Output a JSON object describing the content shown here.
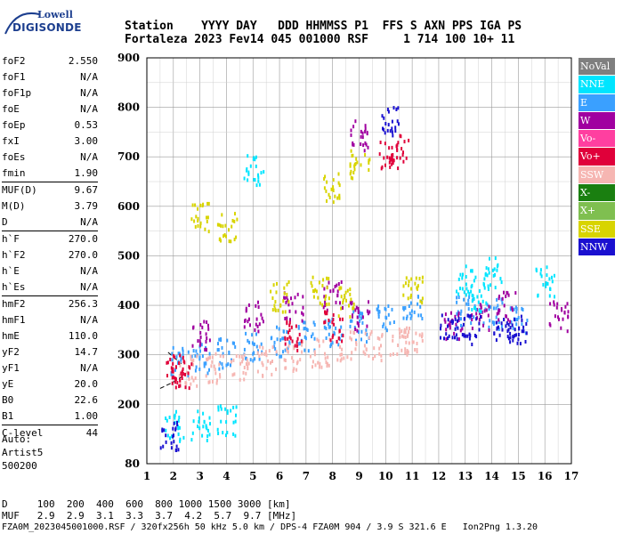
{
  "logo": {
    "top": "Lowell",
    "bottom": "DIGISONDE"
  },
  "header": {
    "line1": "Station    YYYY DAY   DDD HHMMSS P1  FFS S AXN PPS IGA PS",
    "line2": "Fortaleza 2023 Fev14 045 001000 RSF     1 714 100 10+ 11"
  },
  "params": [
    {
      "key": "foF2",
      "value": "2.550"
    },
    {
      "key": "foF1",
      "value": "N/A"
    },
    {
      "key": "foF1p",
      "value": "N/A"
    },
    {
      "key": "foE",
      "value": "N/A"
    },
    {
      "key": "foEp",
      "value": "0.53"
    },
    {
      "key": "fxI",
      "value": "3.00"
    },
    {
      "key": "foEs",
      "value": "N/A"
    },
    {
      "key": "fmin",
      "value": "1.90"
    },
    {
      "key": "MUF(D)",
      "value": "9.67"
    },
    {
      "key": "M(D)",
      "value": "3.79"
    },
    {
      "key": "D",
      "value": "N/A"
    },
    {
      "key": "h`F",
      "value": "270.0"
    },
    {
      "key": "h`F2",
      "value": "270.0"
    },
    {
      "key": "h`E",
      "value": "N/A"
    },
    {
      "key": "h`Es",
      "value": "N/A"
    },
    {
      "key": "hmF2",
      "value": "256.3"
    },
    {
      "key": "hmF1",
      "value": "N/A"
    },
    {
      "key": "hmE",
      "value": "110.0"
    },
    {
      "key": "yF2",
      "value": "14.7"
    },
    {
      "key": "yF1",
      "value": "N/A"
    },
    {
      "key": "yE",
      "value": "20.0"
    },
    {
      "key": "B0",
      "value": "22.6"
    },
    {
      "key": "B1",
      "value": "1.00"
    },
    {
      "key": "C-level",
      "value": "44"
    }
  ],
  "auto": {
    "line1": "Auto:",
    "line2": "Artist5",
    "line3": "500200"
  },
  "legend": [
    {
      "label": "NoVal",
      "color": "#7f7f7f"
    },
    {
      "label": "NNE",
      "color": "#00e5ff"
    },
    {
      "label": "E",
      "color": "#3aa0ff"
    },
    {
      "label": "W",
      "color": "#a000a0"
    },
    {
      "label": "Vo-",
      "color": "#ff3fa0"
    },
    {
      "label": "Vo+",
      "color": "#e0003a"
    },
    {
      "label": "SSW",
      "color": "#f6b6b2"
    },
    {
      "label": "X-",
      "color": "#1a7f10"
    },
    {
      "label": "X+",
      "color": "#7fbf50"
    },
    {
      "label": "SSE",
      "color": "#d8d400"
    },
    {
      "label": "NNW",
      "color": "#1a10d0"
    }
  ],
  "bottom": {
    "line1": "D     100  200  400  600  800 1000 1500 3000 [km]",
    "line2": "MUF   2.9  2.9  3.1  3.3  3.7  4.2  5.7  9.7 [MHz]"
  },
  "footer": "FZA0M_2023045001000.RSF / 320fx256h 50 kHz 5.0 km / DPS-4 FZA0M 904 / 3.9 S 321.6 E   Ion2Png 1.3.20",
  "chart_data": {
    "type": "scatter",
    "x_ticks": [
      "1",
      "2",
      "3",
      "4",
      "5",
      "6",
      "7",
      "8",
      "9",
      "10",
      "11",
      "12",
      "13",
      "14",
      "15",
      "16",
      "17"
    ],
    "y_ticks": [
      "80",
      "200",
      "300",
      "400",
      "500",
      "600",
      "700",
      "800",
      "900"
    ],
    "xlim": [
      1,
      17
    ],
    "ylim": [
      80,
      900
    ],
    "series": [
      {
        "name": "E",
        "color": "#3aa0ff",
        "points": [
          [
            2.2,
            290
          ],
          [
            3,
            295
          ],
          [
            4,
            305
          ],
          [
            5,
            320
          ],
          [
            6,
            330
          ],
          [
            7,
            340
          ],
          [
            8,
            350
          ],
          [
            9,
            360
          ],
          [
            10,
            380
          ],
          [
            11,
            395
          ],
          [
            13,
            390
          ],
          [
            14,
            385
          ],
          [
            15,
            375
          ]
        ]
      },
      {
        "name": "SSW",
        "color": "#f6b6b2",
        "points": [
          [
            2.5,
            270
          ],
          [
            3.5,
            275
          ],
          [
            4.5,
            280
          ],
          [
            5.5,
            290
          ],
          [
            6.5,
            300
          ],
          [
            7.5,
            305
          ],
          [
            8.5,
            320
          ],
          [
            9.5,
            320
          ],
          [
            10.5,
            325
          ],
          [
            11,
            330
          ]
        ]
      },
      {
        "name": "W",
        "color": "#a000a0",
        "points": [
          [
            3,
            340
          ],
          [
            5,
            380
          ],
          [
            6.5,
            400
          ],
          [
            8,
            420
          ],
          [
            9,
            380
          ],
          [
            12.5,
            365
          ],
          [
            13.5,
            380
          ],
          [
            14.5,
            400
          ],
          [
            16.5,
            380
          ],
          [
            9,
            745
          ]
        ]
      },
      {
        "name": "SSE",
        "color": "#d8d400",
        "points": [
          [
            3,
            580
          ],
          [
            4,
            560
          ],
          [
            6,
            420
          ],
          [
            7.5,
            430
          ],
          [
            8.5,
            410
          ],
          [
            8,
            640
          ],
          [
            9,
            685
          ],
          [
            11,
            430
          ]
        ]
      },
      {
        "name": "NNE",
        "color": "#00e5ff",
        "points": [
          [
            2,
            158
          ],
          [
            3,
            160
          ],
          [
            4,
            170
          ],
          [
            5,
            675
          ],
          [
            13,
            455
          ],
          [
            14,
            470
          ],
          [
            13.5,
            420
          ],
          [
            16,
            450
          ]
        ]
      },
      {
        "name": "Vo+",
        "color": "#e0003a",
        "points": [
          [
            2,
            275
          ],
          [
            2.3,
            265
          ],
          [
            10.1,
            705
          ],
          [
            10.5,
            720
          ],
          [
            8,
            360
          ],
          [
            6.5,
            340
          ]
        ]
      },
      {
        "name": "NNW",
        "color": "#1a10d0",
        "points": [
          [
            12.4,
            360
          ],
          [
            13.2,
            355
          ],
          [
            14.4,
            350
          ],
          [
            15,
            355
          ],
          [
            1.8,
            140
          ],
          [
            10.2,
            775
          ]
        ]
      }
    ],
    "virtual_height_curve": {
      "name": "",
      "points": [
        [
          1.5,
          232
        ],
        [
          2,
          245
        ],
        [
          2.3,
          255
        ],
        [
          2.6,
          268
        ]
      ]
    }
  }
}
